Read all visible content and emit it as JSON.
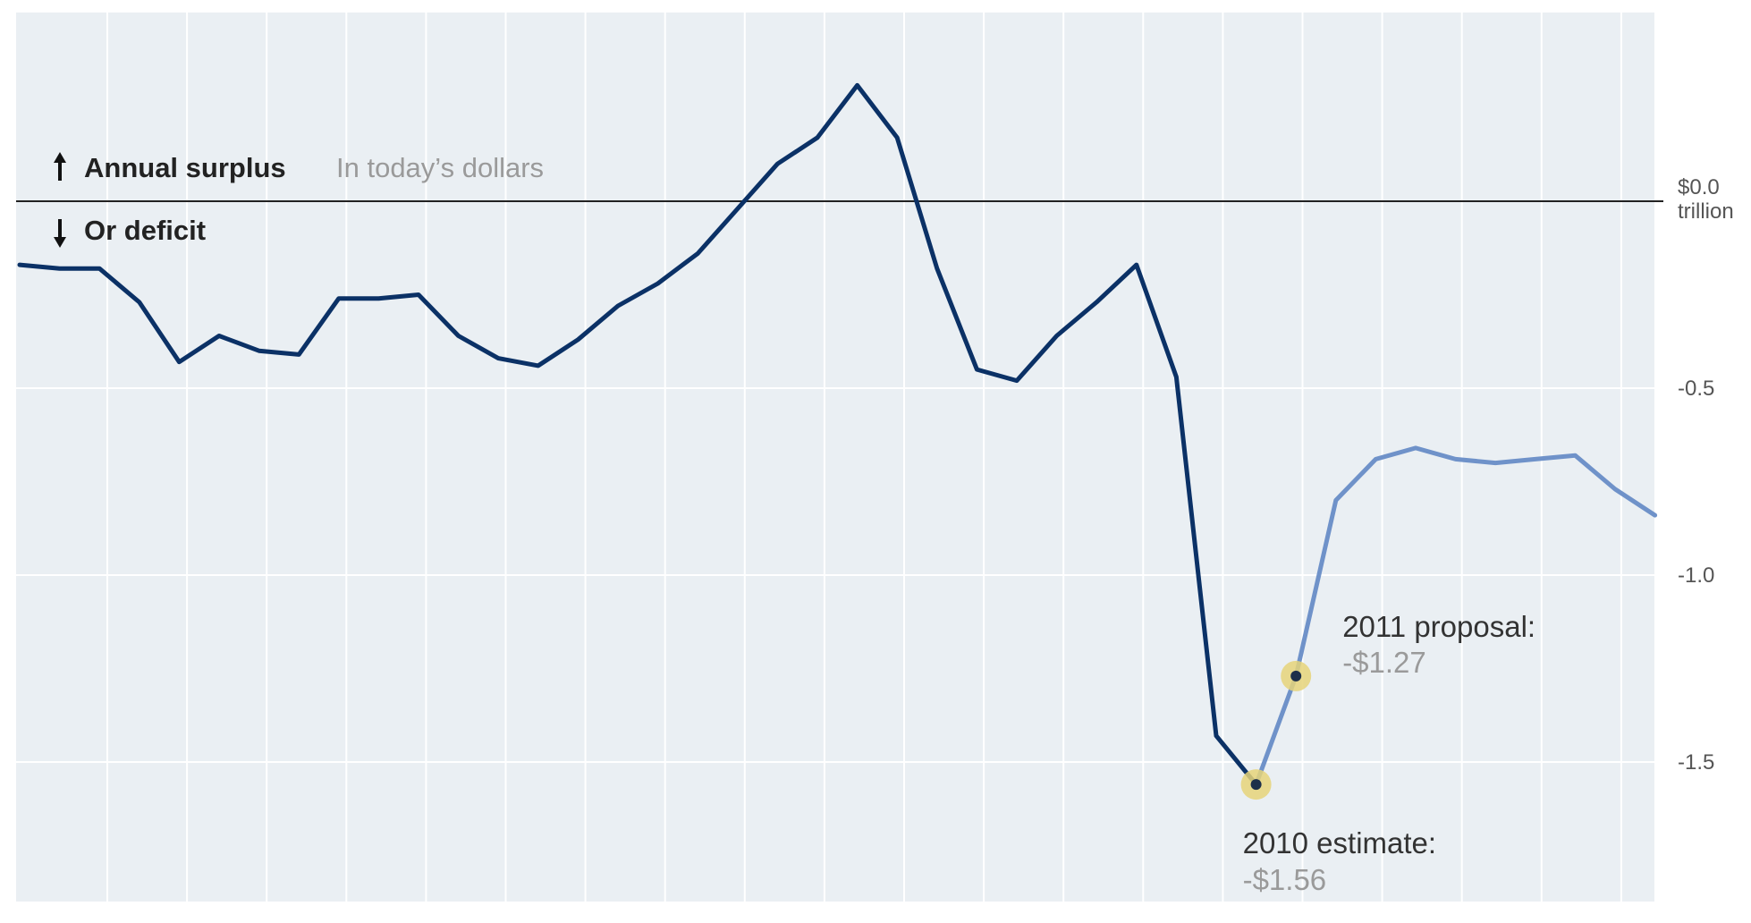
{
  "chart_data": {
    "type": "line",
    "legend": {
      "surplus": "Annual surplus",
      "deficit": "Or deficit",
      "note": "In today’s dollars"
    },
    "ylim": [
      -1.85,
      0.5
    ],
    "y_ticks": [
      {
        "value": 0,
        "label": "$0.0",
        "unit": "trillion"
      },
      {
        "value": -0.5,
        "label": "-0.5"
      },
      {
        "value": -1.0,
        "label": "-1.0"
      },
      {
        "value": -1.5,
        "label": "-1.5"
      }
    ],
    "colors": {
      "actual": "#0b3166",
      "projected": "#6f92c9",
      "highlight": "#e6d479",
      "background": "#eaeff3",
      "gridline": "#ffffff",
      "zero_line": "#222222"
    },
    "series": [
      {
        "key": "actual",
        "values": [
          -0.17,
          -0.18,
          -0.18,
          -0.27,
          -0.43,
          -0.36,
          -0.4,
          -0.41,
          -0.26,
          -0.26,
          -0.25,
          -0.36,
          -0.42,
          -0.44,
          -0.37,
          -0.28,
          -0.22,
          -0.14,
          -0.02,
          0.1,
          0.17,
          0.31,
          0.17,
          -0.18,
          -0.45,
          -0.48,
          -0.36,
          -0.27,
          -0.17,
          -0.47,
          -1.43,
          -1.56
        ]
      },
      {
        "key": "projected",
        "values": [
          -1.56,
          -1.27,
          -0.8,
          -0.69,
          -0.66,
          -0.69,
          -0.7,
          -0.69,
          -0.68,
          -0.77,
          -0.84
        ]
      }
    ],
    "annotations": [
      {
        "label": "2010 estimate:",
        "value_text": "-$1.56",
        "value": -1.56
      },
      {
        "label": "2011 proposal:",
        "value_text": "-$1.27",
        "value": -1.27
      }
    ]
  }
}
